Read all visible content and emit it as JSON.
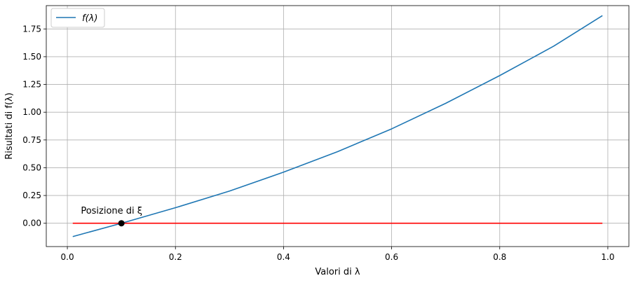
{
  "chart_data": {
    "type": "line",
    "title": "",
    "xlabel": "Valori di λ",
    "ylabel": "Risultati di f(λ)",
    "xlim": [
      -0.039,
      1.039
    ],
    "ylim": [
      -0.21,
      1.96
    ],
    "grid": true,
    "legend_position": "top-left",
    "x_ticks": [
      0.0,
      0.2,
      0.4,
      0.6,
      0.8,
      1.0
    ],
    "x_tick_labels": [
      "0.0",
      "0.2",
      "0.4",
      "0.6",
      "0.8",
      "1.0"
    ],
    "y_ticks": [
      0.0,
      0.25,
      0.5,
      0.75,
      1.0,
      1.25,
      1.5,
      1.75
    ],
    "y_tick_labels": [
      "0.00",
      "0.25",
      "0.50",
      "0.75",
      "1.00",
      "1.25",
      "1.50",
      "1.75"
    ],
    "series": [
      {
        "name": "f(λ)",
        "color": "#1f77b4",
        "x": [
          0.01,
          0.1,
          0.2,
          0.3,
          0.4,
          0.5,
          0.6,
          0.7,
          0.8,
          0.9,
          0.99
        ],
        "y": [
          -0.12,
          0.0,
          0.14,
          0.29,
          0.46,
          0.645,
          0.85,
          1.08,
          1.33,
          1.595,
          1.87
        ]
      },
      {
        "color": "#ff0000",
        "x": [
          0.01,
          0.99
        ],
        "y": [
          0.0,
          0.0
        ]
      }
    ],
    "points": [
      {
        "x": 0.1,
        "y": 0.0,
        "color": "#000000"
      }
    ],
    "annotations": [
      {
        "text": "Posizione di ξ",
        "x": 0.025,
        "y": 0.085
      }
    ]
  }
}
